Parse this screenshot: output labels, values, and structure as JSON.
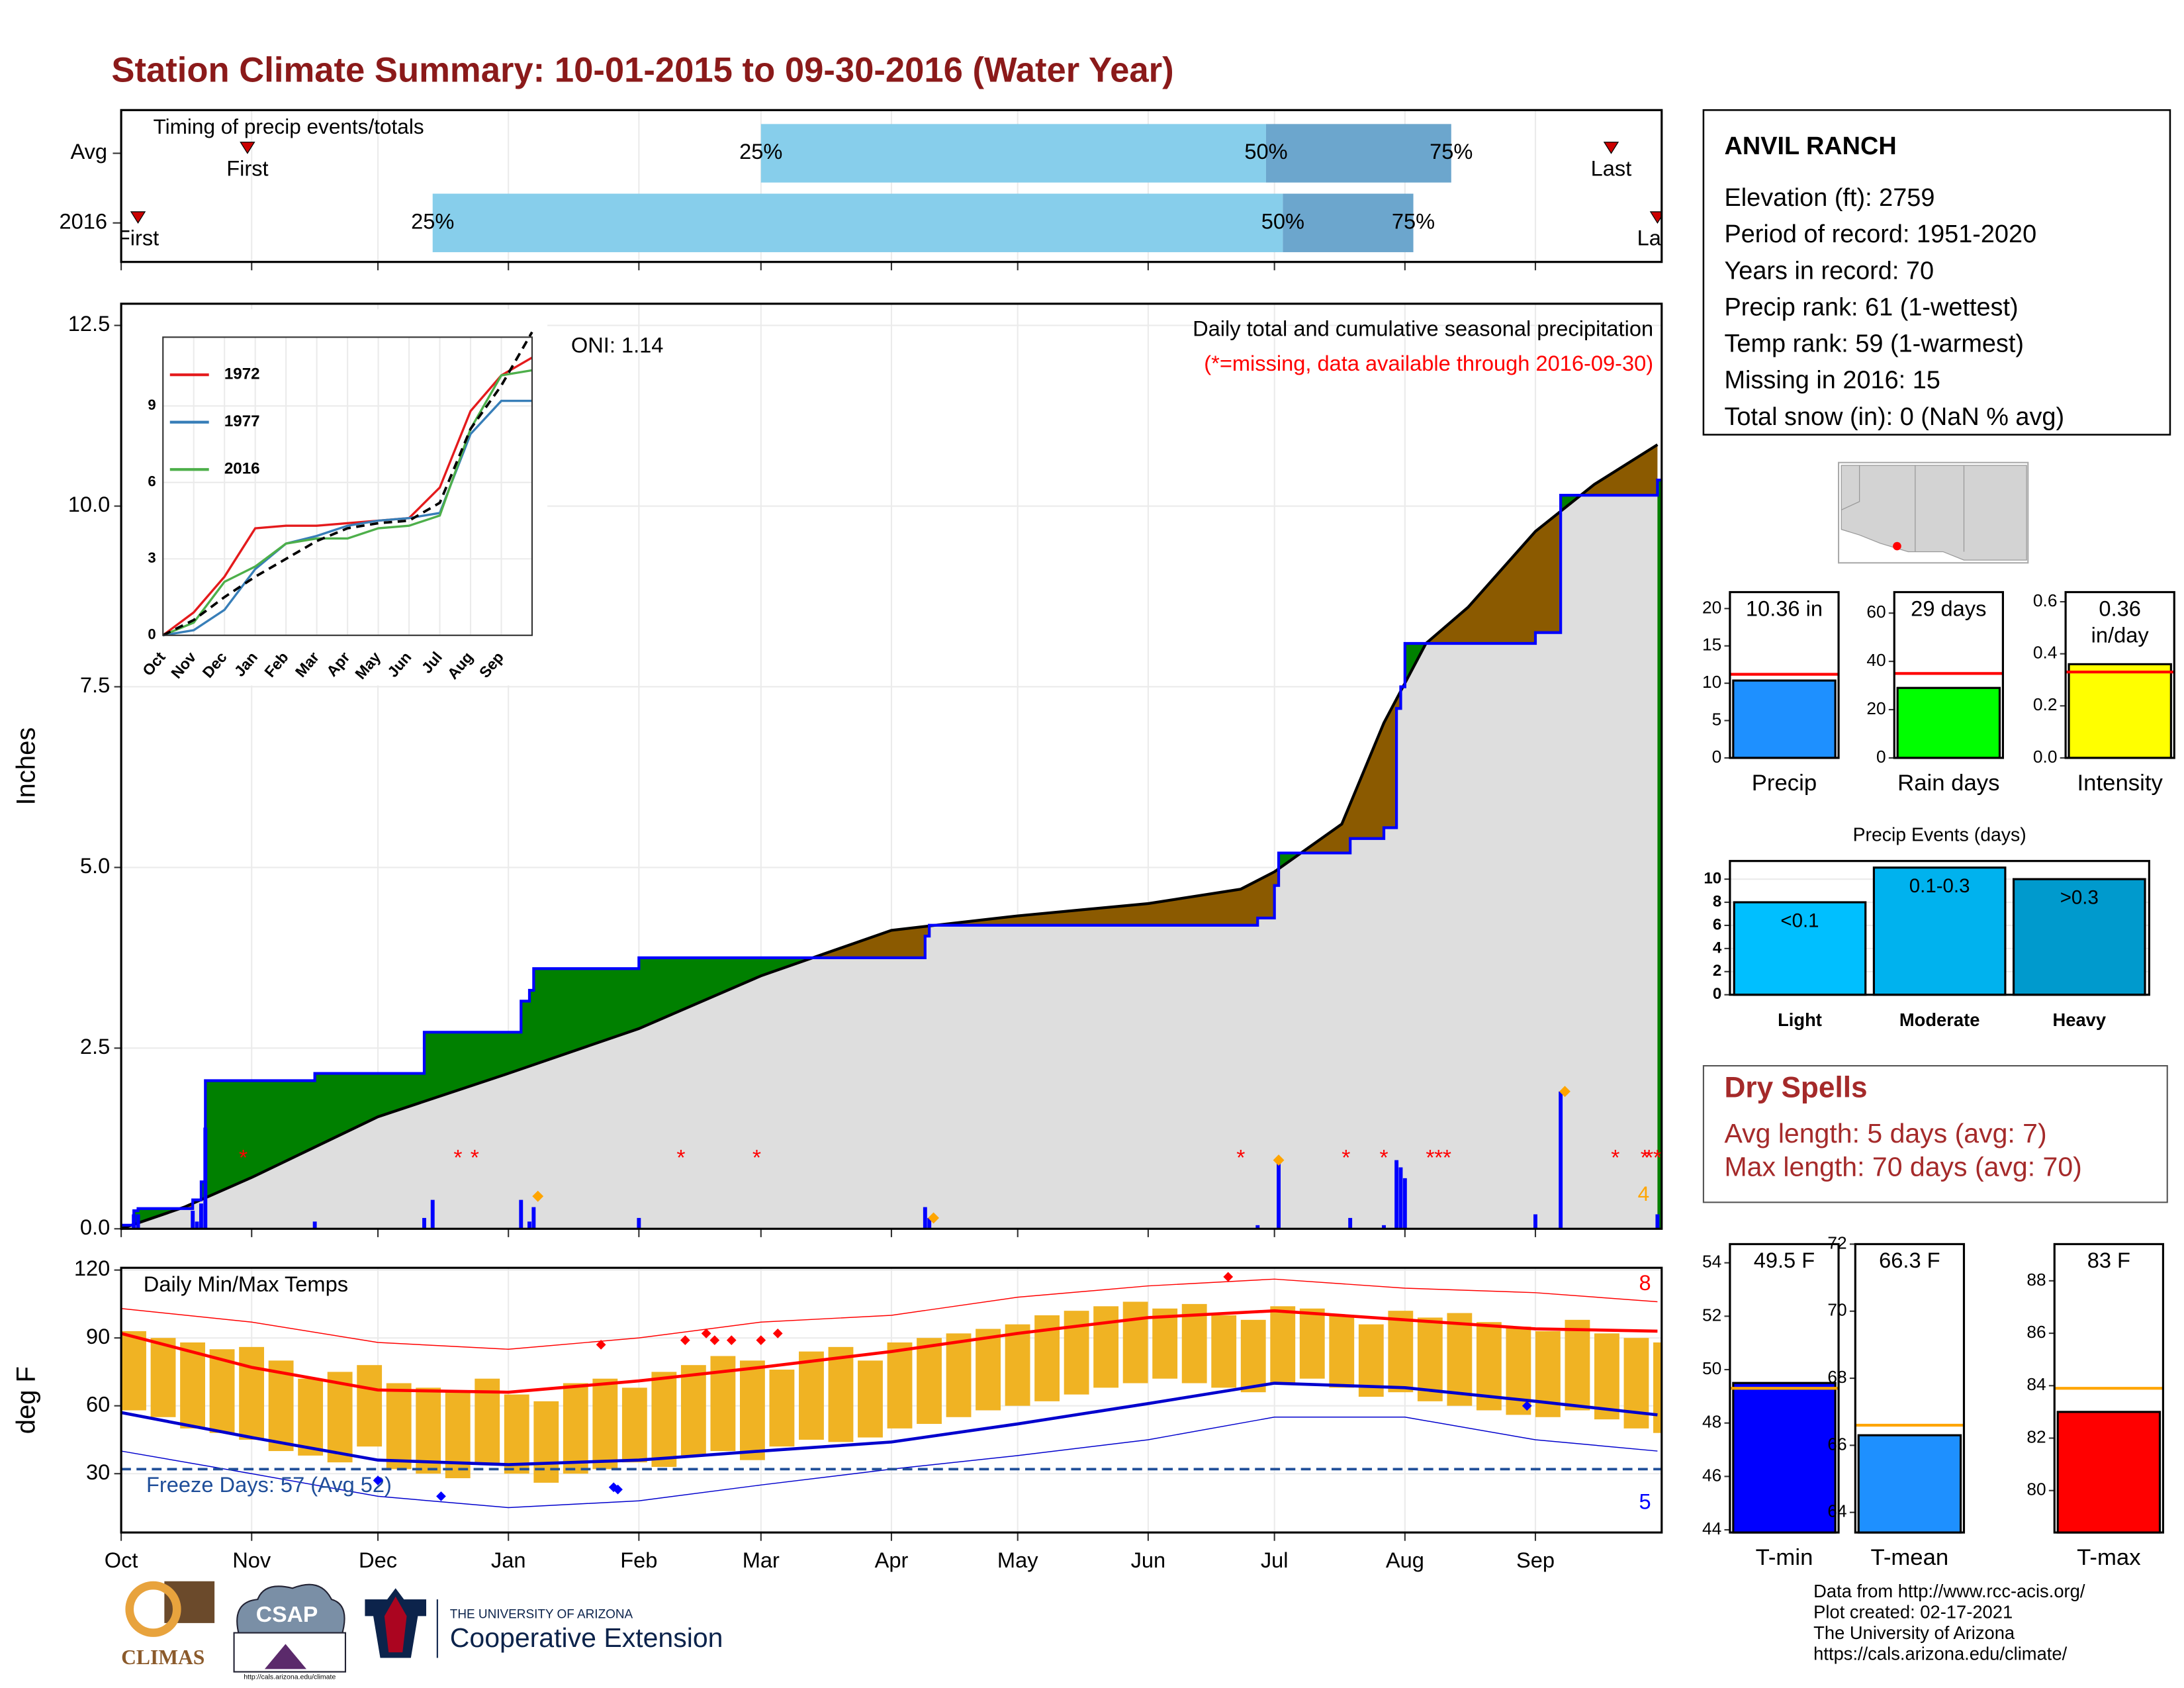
{
  "title": "Station Climate Summary: 10-01-2015 to 09-30-2016 (Water Year)",
  "station": {
    "name": "ANVIL RANCH",
    "lines": [
      "Elevation (ft): 2759",
      "Period of record: 1951-2020",
      "Years in record: 70",
      "Precip rank: 61 (1-wettest)",
      "Temp rank: 59 (1-warmest)",
      "Missing in 2016: 15",
      "Total snow (in): 0 (NaN % avg)"
    ]
  },
  "dry_spells": {
    "title": "Dry Spells",
    "lines": [
      "Avg length: 5 days (avg: 7)",
      "Max length: 70 days (avg: 70)"
    ]
  },
  "footer": [
    "Data from http://www.rcc-acis.org/",
    "Plot created: 02-17-2021",
    "The University of Arizona",
    "https://cals.arizona.edu/climate/"
  ],
  "logos": {
    "climas": "CLIMAS",
    "csap": "CSAP",
    "csap_url": "http://cals.arizona.edu/climate",
    "ua": "THE UNIVERSITY OF ARIZONA",
    "extension": "Cooperative Extension"
  },
  "chart_data": [
    {
      "type": "timing",
      "title": "Timing of precip events/totals",
      "xlim": [
        0,
        366
      ],
      "labels": {
        "first": "First",
        "last": "Last",
        "q25": "25%",
        "q50": "50%",
        "q75": "75%"
      },
      "rows": [
        {
          "name": "Avg",
          "first": 30,
          "q25": 152,
          "q50": 272,
          "q75": 316,
          "last": 354
        },
        {
          "name": "2016",
          "first": 4,
          "q25": 74,
          "q50": 276,
          "q75": 307,
          "last": 365
        }
      ],
      "colors": {
        "early": "#87ceeb",
        "late": "#6ca6cd",
        "marker": "#cc0000"
      }
    },
    {
      "type": "precip",
      "subtitle": "Daily total and cumulative seasonal precipitation",
      "note": "(*=missing, data available through 2016-09-30)",
      "annotation": "ONI: 1.14",
      "ylabel": "Inches",
      "xlim": [
        0,
        366
      ],
      "ylim": [
        0,
        12.8
      ],
      "yticks": [
        {
          "value": 0,
          "label": "0.0"
        },
        {
          "value": 2.5,
          "label": "2.5"
        },
        {
          "value": 5,
          "label": "5.0"
        },
        {
          "value": 7.5,
          "label": "7.5"
        },
        {
          "value": 10,
          "label": "10.0"
        },
        {
          "value": 12.5,
          "label": "12.5"
        }
      ],
      "cumulative": {
        "color": "#0000ff",
        "x": [
          0,
          3,
          4,
          17,
          19,
          20,
          46,
          72,
          95,
          97,
          98,
          123,
          191,
          192,
          270,
          274,
          275,
          292,
          300,
          303,
          304,
          305,
          336,
          342,
          365
        ],
        "values": [
          0.05,
          0.25,
          0.28,
          0.4,
          0.65,
          2.05,
          2.15,
          2.72,
          3.15,
          3.3,
          3.6,
          3.75,
          4.05,
          4.2,
          4.3,
          4.75,
          5.2,
          5.4,
          5.55,
          7.2,
          7.5,
          8.1,
          8.25,
          10.15,
          10.36
        ]
      },
      "average": {
        "color": "#000000",
        "x": [
          0,
          15,
          31,
          61,
          92,
          123,
          152,
          183,
          213,
          244,
          266,
          274,
          290,
          300,
          310,
          320,
          336,
          350,
          365
        ],
        "values": [
          0,
          0.3,
          0.71,
          1.55,
          2.15,
          2.77,
          3.5,
          4.13,
          4.33,
          4.5,
          4.7,
          4.94,
          5.6,
          7.0,
          8.1,
          8.6,
          9.65,
          10.3,
          10.85
        ]
      },
      "fills": {
        "above": "#008000",
        "below": "#8b5a00",
        "base": "#dedede"
      },
      "daily": {
        "color": "#0000ff",
        "x": [
          3,
          4,
          17,
          18,
          19,
          20,
          46,
          72,
          74,
          95,
          97,
          98,
          123,
          191,
          192,
          270,
          275,
          292,
          300,
          303,
          304,
          305,
          336,
          342,
          365
        ],
        "values": [
          0.2,
          0.2,
          0.25,
          0.1,
          0.35,
          1.4,
          0.1,
          0.15,
          0.4,
          0.4,
          0.1,
          0.3,
          0.15,
          0.3,
          0.15,
          0.05,
          0.95,
          0.15,
          0.05,
          0.95,
          0.85,
          0.7,
          0.2,
          1.9,
          0.2
        ]
      },
      "missing": {
        "label": "*",
        "color": "#ff0000",
        "x": [
          29,
          80,
          84,
          133,
          151,
          266,
          291,
          300,
          311,
          313,
          315,
          355,
          362,
          363,
          365
        ]
      },
      "records": {
        "color": "#ffa500",
        "x": [
          99,
          193,
          275,
          343
        ],
        "values": [
          0.45,
          0.15,
          0.95,
          1.9
        ],
        "count": 4
      }
    },
    {
      "type": "line",
      "xlim": [
        0,
        12
      ],
      "ylim": [
        0,
        11.7
      ],
      "yticks": [
        0,
        3,
        6,
        9
      ],
      "xticks": [
        {
          "value": 0,
          "label": "Oct"
        },
        {
          "value": 1,
          "label": "Nov"
        },
        {
          "value": 2,
          "label": "Dec"
        },
        {
          "value": 3,
          "label": "Jan"
        },
        {
          "value": 4,
          "label": "Feb"
        },
        {
          "value": 5,
          "label": "Mar"
        },
        {
          "value": 6,
          "label": "Apr"
        },
        {
          "value": 7,
          "label": "May"
        },
        {
          "value": 8,
          "label": "Jun"
        },
        {
          "value": 9,
          "label": "Jul"
        },
        {
          "value": 10,
          "label": "Aug"
        },
        {
          "value": 11,
          "label": "Sep"
        }
      ],
      "x": [
        0,
        1,
        2,
        3,
        4,
        5,
        6,
        7,
        8,
        9,
        10,
        11,
        12
      ],
      "series": [
        {
          "name": "1972",
          "color": "#e41a1c",
          "values": [
            0,
            0.9,
            2.3,
            4.2,
            4.3,
            4.3,
            4.4,
            4.5,
            4.6,
            5.8,
            8.8,
            10.2,
            10.9
          ]
        },
        {
          "name": "1977",
          "color": "#377eb8",
          "values": [
            0,
            0.2,
            1.0,
            2.6,
            3.6,
            3.9,
            4.3,
            4.5,
            4.6,
            4.8,
            7.9,
            9.2,
            9.2
          ]
        },
        {
          "name": "2016",
          "color": "#4daf4a",
          "values": [
            0,
            0.5,
            2.1,
            2.7,
            3.6,
            3.8,
            3.8,
            4.2,
            4.3,
            4.7,
            8.1,
            10.2,
            10.4
          ]
        }
      ],
      "average": {
        "color": "#000000",
        "values": [
          0,
          0.6,
          1.5,
          2.3,
          3.0,
          3.7,
          4.2,
          4.4,
          4.5,
          5.2,
          8.1,
          9.8,
          11.9
        ]
      }
    },
    {
      "type": "temps",
      "title": "Daily Min/Max Temps",
      "ylabel": "deg F",
      "xlim": [
        0,
        366
      ],
      "ylim": [
        4,
        121
      ],
      "yticks": [
        30,
        60,
        90,
        120
      ],
      "xticks": [
        {
          "value": 0,
          "label": "Oct"
        },
        {
          "value": 31,
          "label": "Nov"
        },
        {
          "value": 61,
          "label": "Dec"
        },
        {
          "value": 92,
          "label": "Jan"
        },
        {
          "value": 123,
          "label": "Feb"
        },
        {
          "value": 152,
          "label": "Mar"
        },
        {
          "value": 183,
          "label": "Apr"
        },
        {
          "value": 213,
          "label": "May"
        },
        {
          "value": 244,
          "label": "Jun"
        },
        {
          "value": 274,
          "label": "Jul"
        },
        {
          "value": 305,
          "label": "Aug"
        },
        {
          "value": 336,
          "label": "Sep"
        }
      ],
      "daily": {
        "color": "#f0b323",
        "x": [
          0,
          7,
          14,
          21,
          28,
          35,
          42,
          49,
          56,
          63,
          70,
          77,
          84,
          91,
          98,
          105,
          112,
          119,
          126,
          133,
          140,
          147,
          154,
          161,
          168,
          175,
          182,
          189,
          196,
          203,
          210,
          217,
          224,
          231,
          238,
          245,
          252,
          259,
          266,
          273,
          280,
          287,
          294,
          301,
          308,
          315,
          322,
          329,
          336,
          343,
          350,
          357,
          364
        ],
        "max": [
          93,
          90,
          88,
          85,
          86,
          80,
          72,
          75,
          78,
          70,
          68,
          66,
          72,
          65,
          62,
          70,
          72,
          68,
          75,
          78,
          82,
          80,
          76,
          84,
          86,
          80,
          88,
          90,
          92,
          94,
          96,
          100,
          102,
          104,
          106,
          103,
          105,
          100,
          98,
          104,
          103,
          100,
          96,
          102,
          99,
          101,
          97,
          95,
          93,
          98,
          92,
          90,
          88
        ],
        "min": [
          58,
          55,
          50,
          48,
          45,
          40,
          38,
          35,
          42,
          32,
          30,
          28,
          34,
          30,
          26,
          30,
          32,
          35,
          33,
          38,
          40,
          36,
          42,
          45,
          44,
          46,
          50,
          52,
          55,
          58,
          60,
          62,
          65,
          68,
          70,
          72,
          70,
          68,
          66,
          70,
          72,
          68,
          64,
          66,
          62,
          60,
          58,
          56,
          55,
          58,
          54,
          50,
          48
        ]
      },
      "normals": {
        "x": [
          0,
          31,
          61,
          92,
          123,
          152,
          183,
          213,
          244,
          274,
          305,
          336,
          365
        ],
        "max": [
          92,
          77,
          67,
          66,
          71,
          77,
          84,
          92,
          99,
          102,
          98,
          94,
          93
        ],
        "min": [
          57,
          46,
          36,
          34,
          36,
          40,
          44,
          52,
          61,
          70,
          68,
          62,
          56
        ],
        "max_color": "#ff0000",
        "min_color": "#0000cd"
      },
      "records": {
        "x": [
          0,
          31,
          61,
          92,
          123,
          152,
          183,
          213,
          244,
          274,
          305,
          336,
          365
        ],
        "max": [
          103,
          97,
          88,
          85,
          90,
          97,
          100,
          108,
          113,
          116,
          112,
          110,
          106
        ],
        "min": [
          40,
          30,
          20,
          15,
          18,
          25,
          32,
          38,
          45,
          55,
          55,
          45,
          40
        ]
      },
      "record_highs": {
        "color": "#ff0000",
        "x": [
          114,
          134,
          139,
          141,
          145,
          152,
          156,
          263
        ],
        "values": [
          87,
          89,
          92,
          89,
          89,
          89,
          92,
          117
        ],
        "count": 8
      },
      "record_lows": {
        "color": "#0000ff",
        "x": [
          61,
          76,
          117,
          118,
          334
        ],
        "values": [
          27,
          20,
          24,
          23,
          60
        ],
        "count": 5
      },
      "freeze": {
        "value": 32,
        "label": "Freeze Days: 57 (Avg 52)",
        "color": "#1f4e99"
      }
    },
    {
      "type": "bar",
      "categories": [
        "Precip"
      ],
      "values": [
        10.36
      ],
      "value_labels": [
        "10.36 in"
      ],
      "average": 11.2,
      "average_color": "#ff0000",
      "colors": [
        "#1e90ff"
      ],
      "ylim": [
        0,
        22.2
      ],
      "yticks": [
        0,
        5,
        10,
        15,
        20
      ]
    },
    {
      "type": "bar",
      "categories": [
        "Rain days"
      ],
      "values": [
        29
      ],
      "value_labels": [
        "29 days"
      ],
      "average": 35,
      "average_color": "#ff0000",
      "colors": [
        "#00ff00"
      ],
      "ylim": [
        0,
        68.7
      ],
      "yticks": [
        0,
        20,
        40,
        60
      ]
    },
    {
      "type": "bar",
      "categories": [
        "Intensity"
      ],
      "values": [
        0.36
      ],
      "value_labels": [
        "0.36 in/day"
      ],
      "average": 0.33,
      "average_color": "#ff0000",
      "colors": [
        "#ffff00"
      ],
      "ylim": [
        0,
        0.637
      ],
      "yticks": [
        {
          "value": 0,
          "label": "0.0"
        },
        0.2,
        0.4,
        0.6
      ]
    },
    {
      "type": "bar",
      "title": "Precip Events (days)",
      "categories": [
        "Light",
        "Moderate",
        "Heavy"
      ],
      "values": [
        8,
        11,
        10
      ],
      "value_labels": [
        "<0.1",
        "0.1-0.3",
        ">0.3"
      ],
      "colors": [
        "#00bfff",
        "#00b2ee",
        "#009acd"
      ],
      "ylim": [
        0,
        11.57
      ],
      "yticks": [
        0,
        2,
        4,
        6,
        8,
        10
      ]
    },
    {
      "type": "bar",
      "categories": [
        "T-min"
      ],
      "values": [
        49.5
      ],
      "value_labels": [
        "49.5 F"
      ],
      "average": 49.3,
      "average_color": "#ffa500",
      "colors": [
        "#0000ff"
      ],
      "ylim": [
        43.9,
        54.7
      ],
      "yticks": [
        44,
        46,
        48,
        50,
        52,
        54
      ]
    },
    {
      "type": "bar",
      "categories": [
        "T-mean"
      ],
      "values": [
        66.3
      ],
      "value_labels": [
        "66.3 F"
      ],
      "average": 66.6,
      "average_color": "#ffa500",
      "colors": [
        "#1e90ff"
      ],
      "ylim": [
        63.4,
        72
      ],
      "yticks": [
        64,
        66,
        68,
        70,
        72
      ]
    },
    {
      "type": "bar",
      "categories": [
        "T-max"
      ],
      "values": [
        83
      ],
      "value_labels": [
        "83 F"
      ],
      "average": 83.9,
      "average_color": "#ffa500",
      "colors": [
        "#ff0000"
      ],
      "ylim": [
        78.4,
        89.4
      ],
      "yticks": [
        80,
        82,
        84,
        86,
        88
      ]
    }
  ]
}
